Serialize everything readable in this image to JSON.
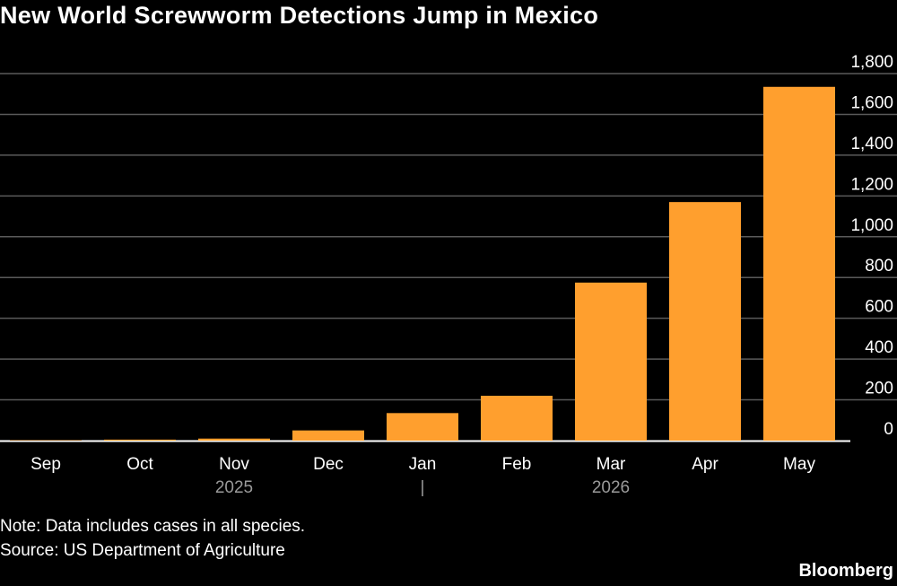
{
  "title": "New World Screwworm Detections Jump in Mexico",
  "note": "Note: Data includes cases in all species.",
  "source": "Source: US Department of Agriculture",
  "brand": "Bloomberg",
  "chart_data": {
    "type": "bar",
    "title": "New World Screwworm Detections Jump in Mexico",
    "categories": [
      "Sep",
      "Oct",
      "Nov",
      "Dec",
      "Jan",
      "Feb",
      "Mar",
      "Apr",
      "May"
    ],
    "year_labels": [
      {
        "label": "2025",
        "under": "Nov"
      },
      {
        "label": "|",
        "under": "Jan"
      },
      {
        "label": "2026",
        "under": "Mar"
      }
    ],
    "values": [
      2,
      5,
      10,
      50,
      135,
      220,
      775,
      1170,
      1735
    ],
    "ylim": [
      0,
      1800
    ],
    "yticks": [
      0,
      200,
      400,
      600,
      800,
      1000,
      1200,
      1400,
      1600,
      1800
    ],
    "ytick_labels": [
      "0",
      "200",
      "400",
      "600",
      "800",
      "1,000",
      "1,200",
      "1,400",
      "1,600",
      "1,800"
    ],
    "y_axis_side": "right",
    "grid": true,
    "colors": {
      "bar": "#FF9F2E",
      "grid": "#5a5a5a",
      "baseline": "#ffffff",
      "background": "#000000"
    }
  }
}
